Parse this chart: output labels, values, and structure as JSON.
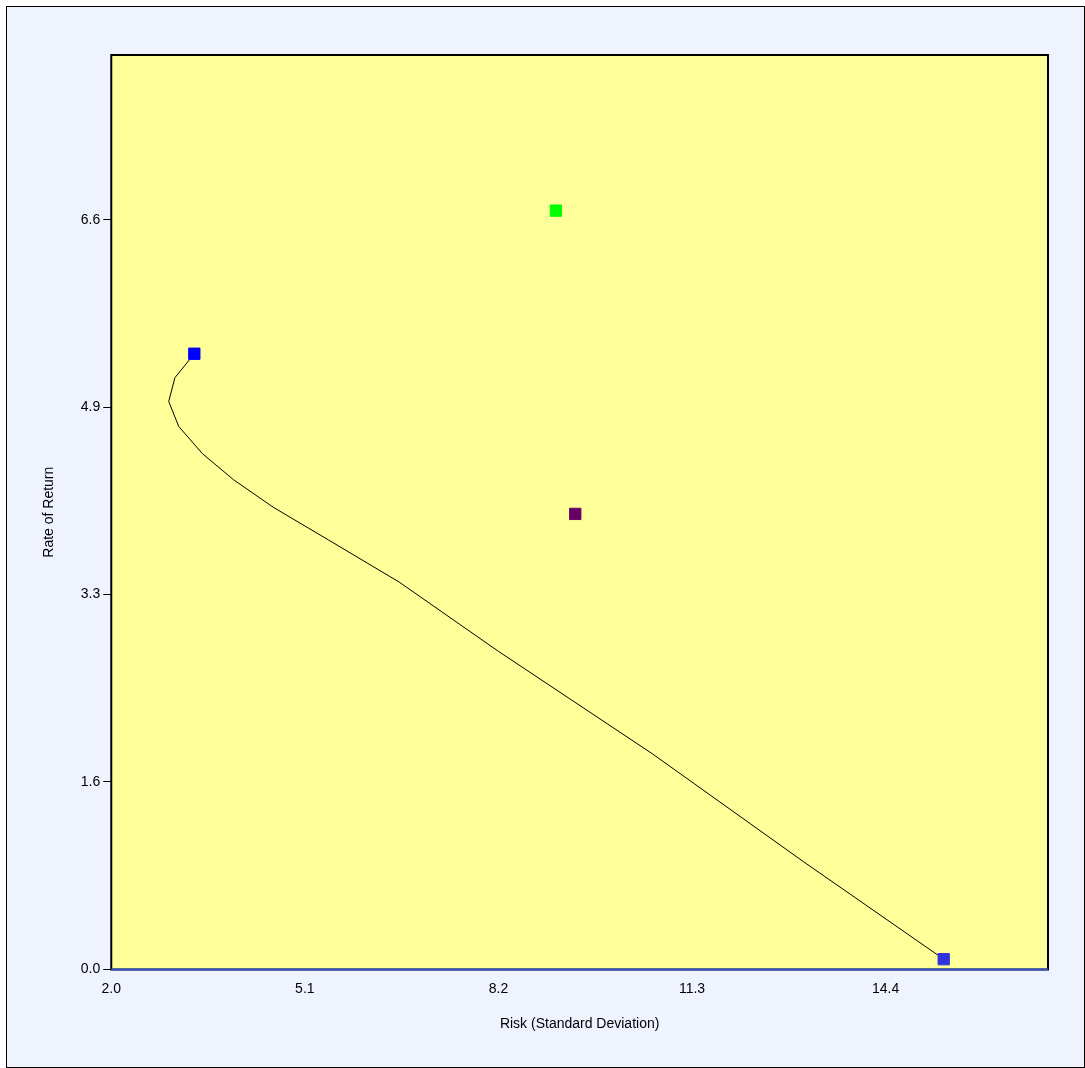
{
  "chart_data": {
    "type": "scatter",
    "xlabel": "Risk (Standard Deviation)",
    "ylabel": "Rate of Return",
    "xlim": [
      2.0,
      17.0
    ],
    "xticks": [
      {
        "value": 2,
        "label": "2.0"
      },
      5.1,
      8.2,
      11.3,
      14.4
    ],
    "ylim": [
      0,
      8.05
    ],
    "yticks": [
      {
        "value": 0,
        "label": "0.0"
      },
      {
        "value": 1.65,
        "label": "1.6"
      },
      {
        "value": 3.3,
        "label": "3.3"
      },
      {
        "value": 4.95,
        "label": "4.9"
      },
      {
        "value": 6.6,
        "label": "6.6"
      }
    ],
    "grid": false,
    "legend": false,
    "marker": "square",
    "series": [
      {
        "type": "line",
        "marker": "none",
        "color": "#000000",
        "x": [
          3.33,
          3.02,
          2.92,
          3.08,
          3.46,
          3.96,
          4.59,
          5.48,
          6.61,
          8.2,
          10.66,
          13.08,
          15.33
        ],
        "values": [
          5.42,
          5.21,
          5.0,
          4.78,
          4.54,
          4.31,
          4.07,
          3.78,
          3.41,
          2.8,
          1.9,
          0.95,
          0.09
        ]
      },
      {
        "color": "#00ff00",
        "x": [
          9.12
        ],
        "values": [
          6.68
        ]
      },
      {
        "color": "#660066",
        "x": [
          9.43
        ],
        "values": [
          4.01
        ]
      },
      {
        "color": "#0000ff",
        "x": [
          3.33
        ],
        "values": [
          5.42
        ]
      },
      {
        "color": "#3333dd",
        "x": [
          15.33
        ],
        "values": [
          0.09
        ]
      }
    ]
  }
}
